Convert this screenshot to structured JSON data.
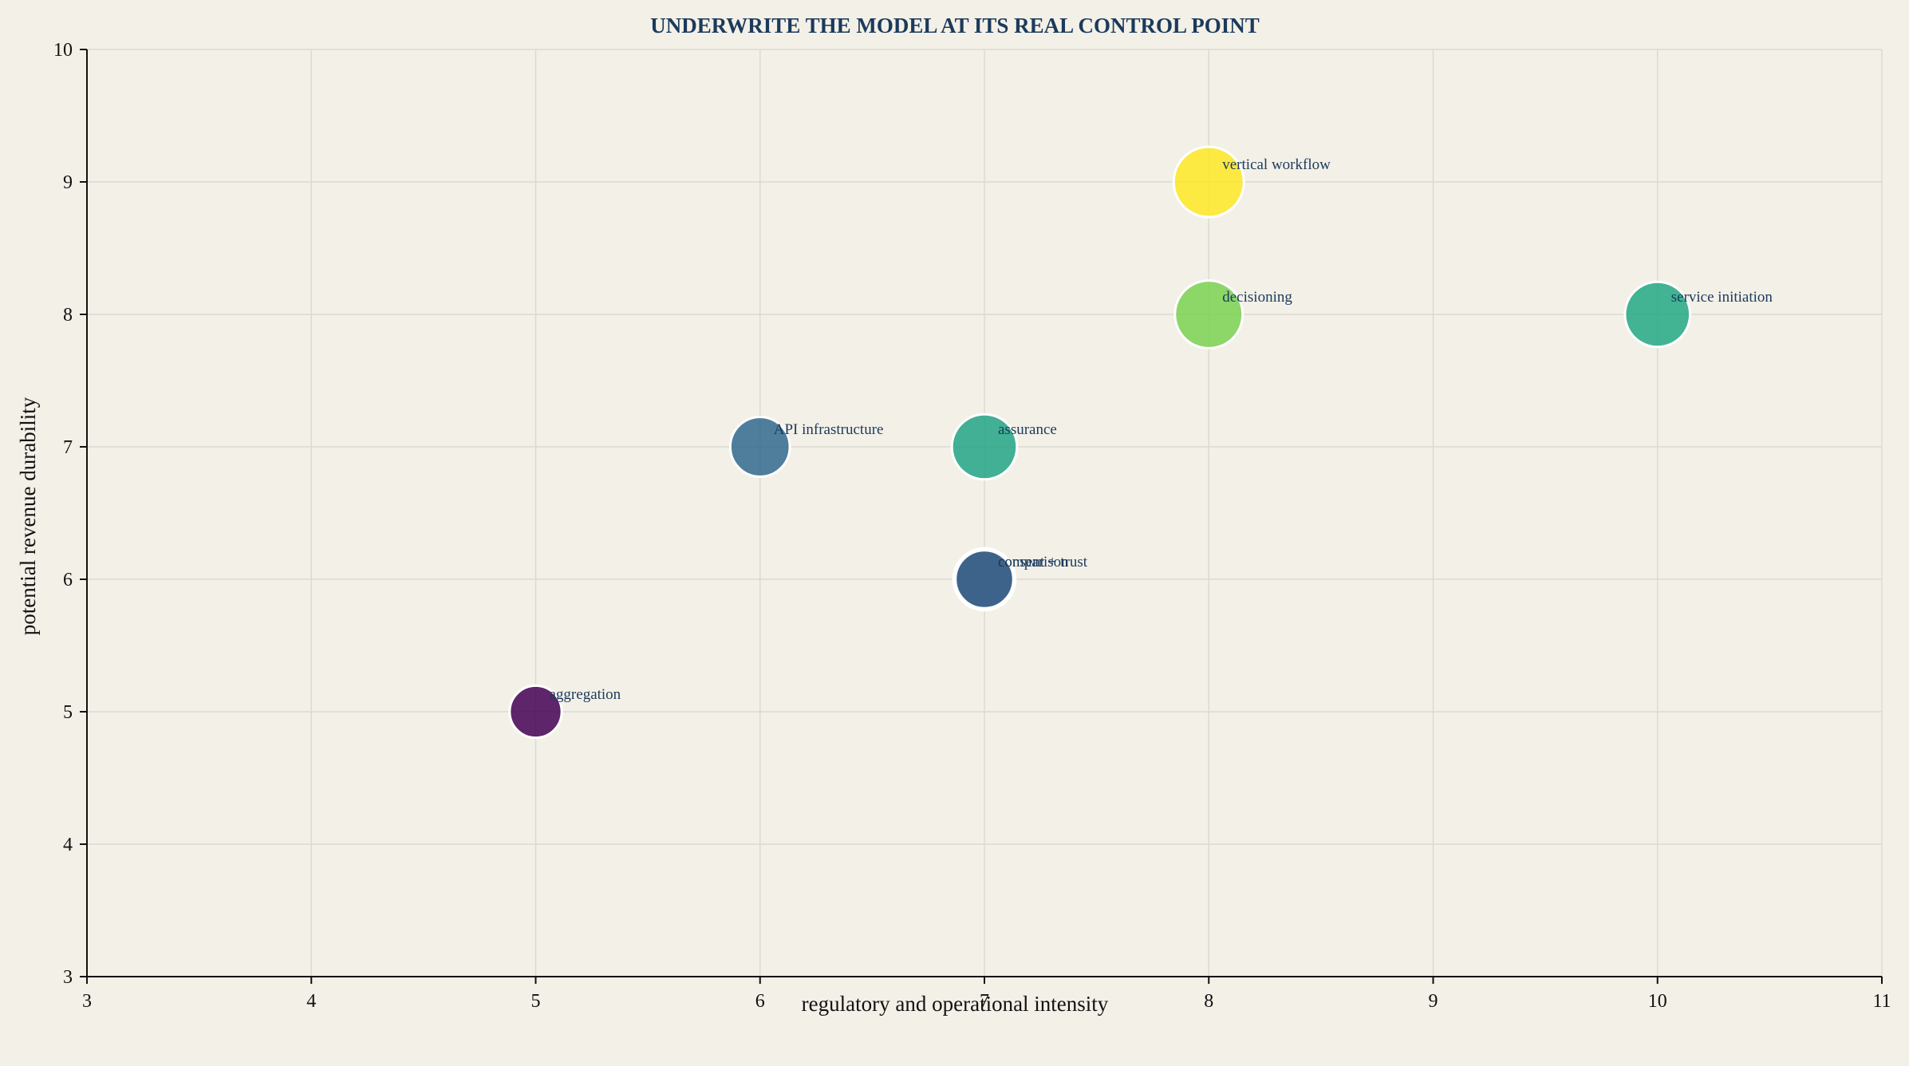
{
  "chart_data": {
    "type": "scatter",
    "title": "UNDERWRITE THE MODEL AT ITS REAL CONTROL POINT",
    "xlabel": "regulatory and operational intensity",
    "ylabel": "potential revenue durability",
    "xlim": [
      3,
      11
    ],
    "ylim": [
      3,
      10
    ],
    "xticks": [
      "3",
      "4",
      "5",
      "6",
      "7",
      "8",
      "9",
      "10",
      "11"
    ],
    "yticks": [
      "3",
      "4",
      "5",
      "6",
      "7",
      "8",
      "9",
      "10"
    ],
    "grid": true,
    "legend": "none",
    "points": [
      {
        "label": "aggregation",
        "x": 5,
        "y": 5,
        "size": 0.55,
        "color": "#440154"
      },
      {
        "label": "API infrastructure",
        "x": 6,
        "y": 7,
        "size": 0.72,
        "color": "#31688e"
      },
      {
        "label": "comparison",
        "x": 7,
        "y": 6,
        "size": 0.78,
        "color": "#35b779"
      },
      {
        "label": "consent + trust",
        "x": 7,
        "y": 6,
        "size": 0.68,
        "color": "#3b528b"
      },
      {
        "label": "assurance",
        "x": 7,
        "y": 7,
        "size": 0.86,
        "color": "#21a585"
      },
      {
        "label": "decisioning",
        "x": 8,
        "y": 8,
        "size": 0.93,
        "color": "#7ad151"
      },
      {
        "label": "vertical workflow",
        "x": 8,
        "y": 9,
        "size": 1.0,
        "color": "#fde725"
      },
      {
        "label": "service initiation",
        "x": 10,
        "y": 8,
        "size": 0.86,
        "color": "#22a884"
      }
    ]
  }
}
